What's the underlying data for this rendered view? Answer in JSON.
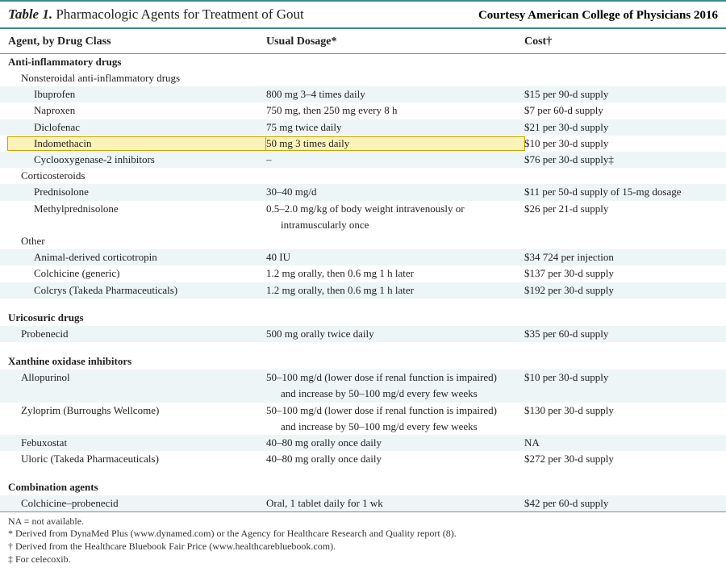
{
  "title_prefix": "Table 1.",
  "title_text": " Pharmacologic Agents for Treatment of Gout",
  "courtesy": "Courtesy American College of Physicians 2016",
  "headers": {
    "agent": "Agent, by Drug Class",
    "dosage": "Usual Dosage*",
    "cost": "Cost†"
  },
  "colors": {
    "teal_rule": "#3a8a8a",
    "shade_bg": "#eef5f7",
    "highlight_bg": "#fdf3b8",
    "highlight_border": "#c9a400"
  },
  "rows": [
    {
      "type": "class",
      "shade": false,
      "agent": "Anti-inflammatory drugs",
      "dosage": "",
      "cost": ""
    },
    {
      "type": "sub",
      "shade": false,
      "indent": 1,
      "agent": "Nonsteroidal anti-inflammatory drugs",
      "dosage": "",
      "cost": ""
    },
    {
      "type": "drug",
      "shade": true,
      "indent": 2,
      "agent": "Ibuprofen",
      "dosage": "800 mg 3–4 times daily",
      "cost": "$15 per 90-d supply"
    },
    {
      "type": "drug",
      "shade": false,
      "indent": 2,
      "agent": "Naproxen",
      "dosage": "750 mg, then 250 mg every 8 h",
      "cost": "$7 per 60-d supply"
    },
    {
      "type": "drug",
      "shade": true,
      "indent": 2,
      "agent": "Diclofenac",
      "dosage": "75 mg twice daily",
      "cost": "$21 per 30-d supply"
    },
    {
      "type": "drug",
      "shade": false,
      "indent": 2,
      "agent": "Indomethacin",
      "dosage": "50 mg 3 times daily",
      "cost": "$10 per 30-d supply",
      "highlight": true
    },
    {
      "type": "drug",
      "shade": true,
      "indent": 2,
      "agent": "Cyclooxygenase-2 inhibitors",
      "dosage": "–",
      "cost": "$76 per 30-d supply‡"
    },
    {
      "type": "sub",
      "shade": false,
      "indent": 1,
      "agent": "Corticosteroids",
      "dosage": "",
      "cost": ""
    },
    {
      "type": "drug",
      "shade": true,
      "indent": 2,
      "agent": "Prednisolone",
      "dosage": "30–40 mg/d",
      "cost": "$11 per 50-d supply of 15-mg dosage"
    },
    {
      "type": "drug",
      "shade": false,
      "indent": 2,
      "agent": "Methylprednisolone",
      "dosage": "0.5–2.0 mg/kg of body weight intravenously or",
      "cost": "$26 per 21-d supply"
    },
    {
      "type": "cont",
      "shade": false,
      "indent": 2,
      "agent": "",
      "dosage": "intramuscularly once",
      "cost": ""
    },
    {
      "type": "sub",
      "shade": false,
      "indent": 1,
      "agent": "Other",
      "dosage": "",
      "cost": ""
    },
    {
      "type": "drug",
      "shade": true,
      "indent": 2,
      "agent": "Animal-derived corticotropin",
      "dosage": "40 IU",
      "cost": "$34 724 per injection"
    },
    {
      "type": "drug",
      "shade": false,
      "indent": 2,
      "agent": "Colchicine (generic)",
      "dosage": "1.2 mg orally, then 0.6 mg 1 h later",
      "cost": "$137 per 30-d supply"
    },
    {
      "type": "drug",
      "shade": true,
      "indent": 2,
      "agent": "Colcrys (Takeda Pharmaceuticals)",
      "dosage": "1.2 mg orally, then 0.6 mg 1 h later",
      "cost": "$192 per 30-d supply"
    },
    {
      "type": "spacer",
      "shade": false
    },
    {
      "type": "class",
      "shade": false,
      "agent": "Uricosuric drugs",
      "dosage": "",
      "cost": ""
    },
    {
      "type": "drug",
      "shade": true,
      "indent": 1,
      "agent": "Probenecid",
      "dosage": "500 mg orally twice daily",
      "cost": "$35 per 60-d supply"
    },
    {
      "type": "spacer",
      "shade": false
    },
    {
      "type": "class",
      "shade": false,
      "agent": "Xanthine oxidase inhibitors",
      "dosage": "",
      "cost": ""
    },
    {
      "type": "drug",
      "shade": true,
      "indent": 1,
      "agent": "Allopurinol",
      "dosage": "50–100 mg/d (lower dose if renal function is impaired)",
      "cost": "$10 per 30-d supply"
    },
    {
      "type": "cont",
      "shade": true,
      "indent": 1,
      "agent": "",
      "dosage": "and increase by 50–100 mg/d every few weeks",
      "cost": ""
    },
    {
      "type": "drug",
      "shade": false,
      "indent": 1,
      "agent": "Zyloprim (Burroughs Wellcome)",
      "dosage": "50–100 mg/d (lower dose if renal function is impaired)",
      "cost": "$130 per 30-d supply"
    },
    {
      "type": "cont",
      "shade": false,
      "indent": 1,
      "agent": "",
      "dosage": "and increase by 50–100 mg/d every few weeks",
      "cost": ""
    },
    {
      "type": "drug",
      "shade": true,
      "indent": 1,
      "agent": "Febuxostat",
      "dosage": "40–80 mg orally once daily",
      "cost": "NA"
    },
    {
      "type": "drug",
      "shade": false,
      "indent": 1,
      "agent": "Uloric (Takeda Pharmaceuticals)",
      "dosage": "40–80 mg orally once daily",
      "cost": "$272 per 30-d supply"
    },
    {
      "type": "spacer",
      "shade": false
    },
    {
      "type": "class",
      "shade": false,
      "agent": "Combination agents",
      "dosage": "",
      "cost": ""
    },
    {
      "type": "drug",
      "shade": true,
      "indent": 1,
      "agent": "Colchicine–probenecid",
      "dosage": "Oral, 1 tablet daily for 1 wk",
      "cost": "$42 per 60-d supply"
    }
  ],
  "footnotes": [
    "NA = not available.",
    "* Derived from DynaMed Plus (www.dynamed.com) or the Agency for Healthcare Research and Quality report (8).",
    "† Derived from the Healthcare Bluebook Fair Price (www.healthcarebluebook.com).",
    "‡ For celecoxib."
  ]
}
